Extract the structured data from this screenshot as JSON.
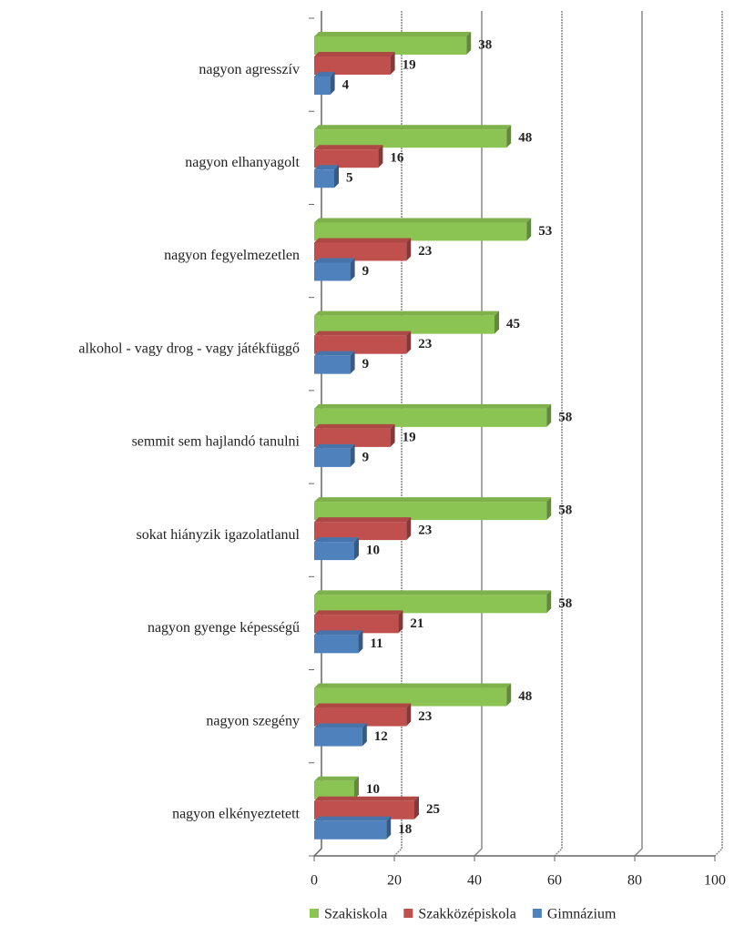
{
  "chart_data": {
    "type": "bar",
    "orientation": "horizontal",
    "categories": [
      "nagyon agresszív",
      "nagyon elhanyagolt",
      "nagyon fegyelmezetlen",
      "alkohol - vagy drog - vagy játékfüggő",
      "semmit sem hajlandó tanulni",
      "sokat hiányzik igazolatlanul",
      "nagyon gyenge képességű",
      "nagyon szegény",
      "nagyon elkényeztetett"
    ],
    "series": [
      {
        "name": "Szakiskola",
        "color": "#8cc454",
        "values": [
          38,
          48,
          53,
          45,
          58,
          58,
          58,
          48,
          10
        ]
      },
      {
        "name": "Szakközépiskola",
        "color": "#c0504d",
        "values": [
          19,
          16,
          23,
          23,
          19,
          23,
          21,
          23,
          25
        ]
      },
      {
        "name": "Gimnázium",
        "color": "#4f81bd",
        "values": [
          4,
          5,
          9,
          9,
          9,
          10,
          11,
          12,
          18
        ]
      }
    ],
    "xlim": [
      0,
      100
    ],
    "xticks": [
      0,
      20,
      40,
      60,
      80,
      100
    ],
    "grid": true,
    "legend": "bottom"
  }
}
